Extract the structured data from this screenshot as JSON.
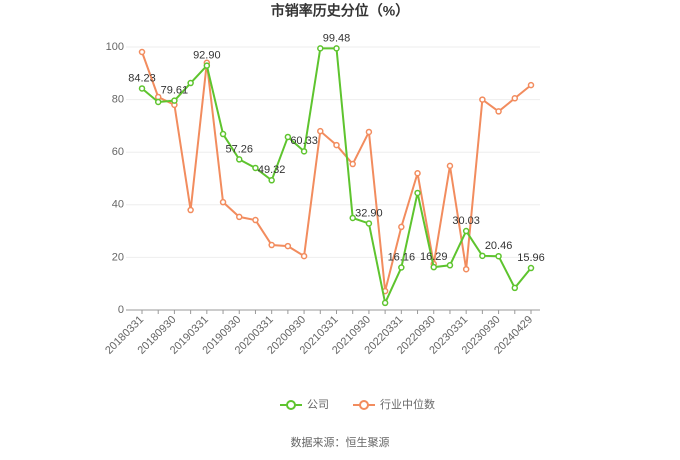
{
  "chart_data": {
    "type": "line",
    "title": "市销率历史分位（%）",
    "categories": [
      "20180331",
      null,
      "20180930",
      null,
      "20190331",
      null,
      "20190930",
      null,
      "20200331",
      null,
      "20200930",
      null,
      "20210331",
      null,
      "20210930",
      null,
      "20220331",
      null,
      "20220930",
      null,
      "20230331",
      null,
      "20230930",
      null,
      "20240429"
    ],
    "series": [
      {
        "name": "公司",
        "color": "#5ec42e",
        "values": [
          84.23,
          79.1,
          79.61,
          86.3,
          92.9,
          66.9,
          57.26,
          54,
          49.32,
          65.8,
          60.33,
          99.48,
          99.48,
          35,
          32.9,
          2.7,
          16.16,
          44.5,
          16.29,
          17,
          30.03,
          20.6,
          20.46,
          8.4,
          15.96
        ],
        "value_labels": [
          "84.23",
          null,
          "79.61",
          null,
          "92.90",
          null,
          "57.26",
          null,
          "49.32",
          null,
          "60.33",
          null,
          "99.48",
          null,
          "32.90",
          null,
          "16.16",
          null,
          "16.29",
          null,
          "30.03",
          null,
          "20.46",
          null,
          "15.96"
        ]
      },
      {
        "name": "行业中位数",
        "color": "#f28c5e",
        "values": [
          98.1,
          81,
          78,
          38,
          94,
          41,
          35.4,
          34.2,
          24.7,
          24.3,
          20.5,
          68,
          62.7,
          55.5,
          67.7,
          7.2,
          31.6,
          52,
          17.5,
          54.8,
          15.5,
          80,
          75.5,
          80.5,
          85.5
        ]
      }
    ],
    "ylim": [
      0,
      100
    ],
    "yticks": [
      0,
      20,
      40,
      60,
      80,
      100
    ],
    "grid": true,
    "source": "数据来源：恒生聚源"
  }
}
